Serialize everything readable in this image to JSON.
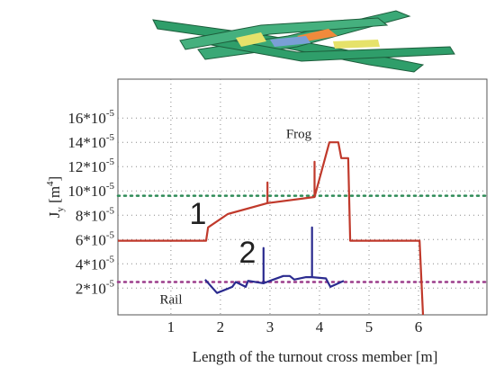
{
  "chart_data": {
    "type": "line",
    "x_label": "Length of the turnout cross member [m]",
    "y_label": {
      "text": "J",
      "subscript": "y",
      "unit": " [m",
      "unit_exponent": "4",
      "unit_close": "]"
    },
    "xlim": [
      -0.07,
      7.38
    ],
    "ylim": [
      -2e-06,
      0.000192
    ],
    "xticks": [
      1,
      2,
      3,
      4,
      5,
      6
    ],
    "yticks": [
      {
        "value": 2e-05,
        "label": "2*10",
        "exponent": "-5"
      },
      {
        "value": 4e-05,
        "label": "4*10",
        "exponent": "-5"
      },
      {
        "value": 6e-05,
        "label": "6*10",
        "exponent": "-5"
      },
      {
        "value": 8e-05,
        "label": "8*10",
        "exponent": "-5"
      },
      {
        "value": 0.0001,
        "label": "10*10",
        "exponent": "-5"
      },
      {
        "value": 0.00012,
        "label": "12*10",
        "exponent": "-5"
      },
      {
        "value": 0.00014,
        "label": "14*10",
        "exponent": "-5"
      },
      {
        "value": 0.00016,
        "label": "16*10",
        "exponent": "-5"
      }
    ],
    "grid": true,
    "reference_lines": [
      {
        "value": 9.6e-05,
        "color": "#2e8b57"
      },
      {
        "value": 2.5e-05,
        "color": "#9b3b8a"
      }
    ],
    "series": [
      {
        "color": "#c0392b",
        "x": [
          -0.07,
          1.71,
          1.75,
          2.15,
          2.95,
          2.95,
          2.95,
          3.9,
          3.9,
          3.9,
          4.2,
          4.38,
          4.44,
          4.58,
          4.62,
          6.02,
          6.09
        ],
        "values": [
          5.9e-05,
          5.9e-05,
          7e-05,
          8.1e-05,
          9e-05,
          0.000107,
          9e-05,
          9.5e-05,
          0.000124,
          9.5e-05,
          0.00014,
          0.00014,
          0.000127,
          0.000127,
          5.9e-05,
          5.9e-05,
          -2e-06
        ]
      },
      {
        "color": "#2b2b8f",
        "x": [
          1.69,
          1.93,
          2.24,
          2.31,
          2.51,
          2.56,
          2.87,
          2.87,
          2.87,
          3.0,
          3.27,
          3.4,
          3.49,
          3.73,
          3.85,
          3.85,
          3.85,
          4.13,
          4.22,
          4.49
        ],
        "values": [
          2.7e-05,
          1.6e-05,
          2.1e-05,
          2.5e-05,
          2.1e-05,
          2.6e-05,
          2.4e-05,
          5.3e-05,
          2.4e-05,
          2.6e-05,
          3e-05,
          3e-05,
          2.7e-05,
          2.9e-05,
          2.9e-05,
          7e-05,
          2.9e-05,
          2.8e-05,
          2.1e-05,
          2.6e-05
        ]
      }
    ],
    "annotations": [
      "Frog",
      "1",
      "2",
      "Rail"
    ]
  }
}
